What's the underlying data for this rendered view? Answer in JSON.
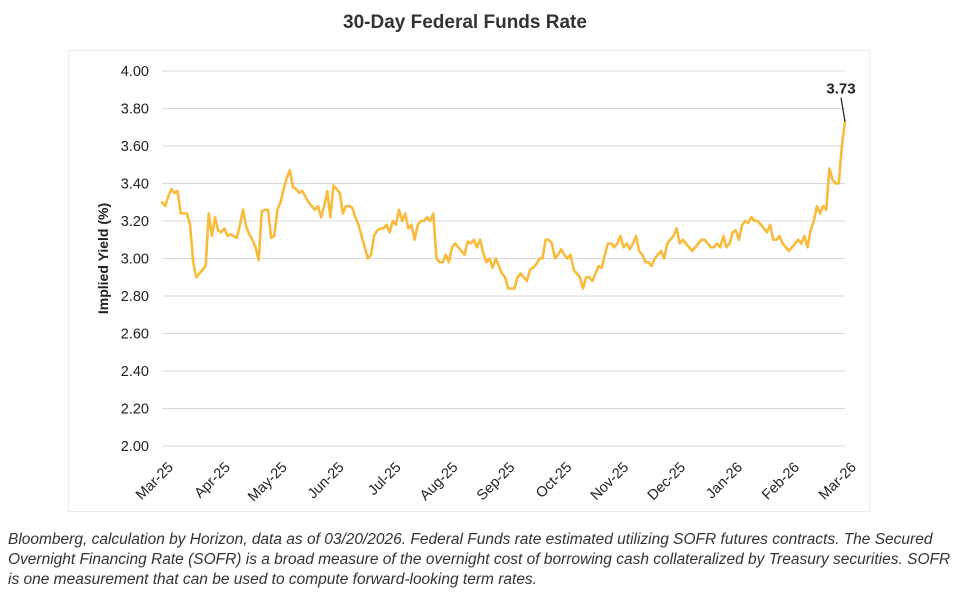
{
  "chart_data": {
    "type": "line",
    "title": "30-Day Federal Funds Rate",
    "ylabel": "Implied Yield (%)",
    "xlabel": "",
    "ylim": [
      2.0,
      4.0
    ],
    "yticks": [
      "4.00",
      "3.80",
      "3.60",
      "3.40",
      "3.20",
      "3.00",
      "2.80",
      "2.60",
      "2.40",
      "2.20",
      "2.00"
    ],
    "xticks": [
      "Mar-25",
      "Apr-25",
      "May-25",
      "Jun-25",
      "Jul-25",
      "Aug-25",
      "Sep-25",
      "Oct-25",
      "Nov-25",
      "Dec-25",
      "Jan-26",
      "Feb-26",
      "Mar-26"
    ],
    "grid": true,
    "line_color": "#f9bb3c",
    "last_value_label": "3.73",
    "series": [
      {
        "values": [
          3.3,
          3.28,
          3.33,
          3.37,
          3.35,
          3.36,
          3.24,
          3.24,
          3.24,
          3.18,
          2.98,
          2.9,
          2.92,
          2.94,
          2.96,
          3.24,
          3.12,
          3.22,
          3.15,
          3.14,
          3.16,
          3.12,
          3.13,
          3.12,
          3.11,
          3.18,
          3.26,
          3.17,
          3.13,
          3.1,
          3.06,
          2.99,
          3.25,
          3.26,
          3.26,
          3.11,
          3.12,
          3.26,
          3.3,
          3.37,
          3.43,
          3.47,
          3.38,
          3.37,
          3.35,
          3.36,
          3.33,
          3.3,
          3.28,
          3.26,
          3.28,
          3.22,
          3.28,
          3.36,
          3.22,
          3.39,
          3.37,
          3.35,
          3.24,
          3.28,
          3.28,
          3.27,
          3.22,
          3.18,
          3.12,
          3.06,
          3.0,
          3.02,
          3.12,
          3.15,
          3.16,
          3.16,
          3.18,
          3.14,
          3.2,
          3.18,
          3.26,
          3.2,
          3.24,
          3.16,
          3.18,
          3.1,
          3.18,
          3.2,
          3.2,
          3.22,
          3.2,
          3.24,
          3.0,
          2.98,
          2.98,
          3.02,
          2.98,
          3.06,
          3.08,
          3.06,
          3.04,
          3.02,
          3.09,
          3.08,
          3.1,
          3.06,
          3.1,
          3.03,
          2.98,
          3.0,
          2.95,
          3.0,
          2.96,
          2.92,
          2.9,
          2.84,
          2.84,
          2.84,
          2.9,
          2.92,
          2.9,
          2.88,
          2.94,
          2.95,
          2.97,
          3.0,
          3.0,
          3.1,
          3.1,
          3.08,
          3.0,
          3.02,
          3.05,
          3.02,
          3.0,
          3.02,
          2.94,
          2.92,
          2.9,
          2.84,
          2.9,
          2.9,
          2.88,
          2.92,
          2.96,
          2.95,
          3.02,
          3.08,
          3.08,
          3.06,
          3.08,
          3.12,
          3.06,
          3.08,
          3.05,
          3.08,
          3.12,
          3.04,
          3.02,
          2.98,
          2.98,
          2.96,
          3.0,
          3.02,
          3.04,
          3.0,
          3.08,
          3.1,
          3.12,
          3.16,
          3.08,
          3.1,
          3.08,
          3.06,
          3.04,
          3.06,
          3.08,
          3.1,
          3.1,
          3.08,
          3.06,
          3.06,
          3.08,
          3.06,
          3.12,
          3.06,
          3.08,
          3.14,
          3.15,
          3.1,
          3.18,
          3.2,
          3.19,
          3.22,
          3.2,
          3.2,
          3.18,
          3.16,
          3.14,
          3.18,
          3.1,
          3.1,
          3.12,
          3.08,
          3.06,
          3.04,
          3.06,
          3.08,
          3.1,
          3.08,
          3.12,
          3.06,
          3.15,
          3.2,
          3.28,
          3.24,
          3.28,
          3.26,
          3.48,
          3.42,
          3.4,
          3.4,
          3.6,
          3.73
        ]
      }
    ]
  },
  "caption": "Bloomberg, calculation by Horizon, data as of 03/20/2026. Federal Funds rate estimated utilizing SOFR futures contracts. The Secured Overnight Financing Rate (SOFR) is a broad measure of the overnight cost of borrowing cash collateralized by Treasury securities. SOFR is one measurement that can be used to compute forward-looking term rates."
}
